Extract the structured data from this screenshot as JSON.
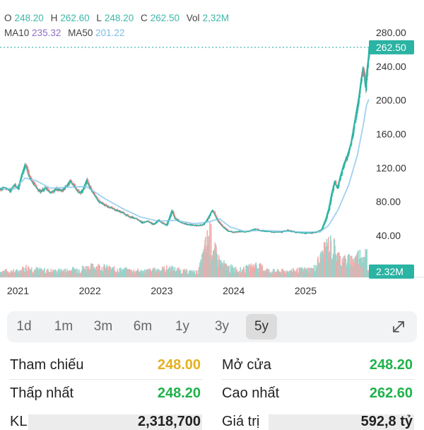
{
  "ohlc": {
    "o_label": "O",
    "o": "248.20",
    "h_label": "H",
    "h": "262.60",
    "l_label": "L",
    "l": "248.20",
    "c_label": "C",
    "c": "262.50",
    "vol_label": "Vol",
    "vol": "2,32M"
  },
  "ma": {
    "ma10_label": "MA10",
    "ma10": "235.32",
    "ma50_label": "MA50",
    "ma50": "201.22"
  },
  "chart_data": {
    "type": "candlestick",
    "y_ticks": [
      "280.00",
      "240.00",
      "200.00",
      "160.00",
      "120.00",
      "80.00",
      "40.00"
    ],
    "y_tick_values": [
      280,
      240,
      200,
      160,
      120,
      80,
      40
    ],
    "ylim": [
      0,
      300
    ],
    "x_ticks": [
      "2021",
      "2022",
      "2023",
      "2024",
      "2025"
    ],
    "x_tick_values": [
      2021.0,
      2022.0,
      2023.0,
      2024.0,
      2025.0
    ],
    "xlim": [
      2020.75,
      2025.88
    ],
    "last_price_label": "262.50",
    "last_price": 262.5,
    "volume_label": "2.32M",
    "price_series": [
      [
        2020.75,
        95
      ],
      [
        2020.82,
        97
      ],
      [
        2020.88,
        93
      ],
      [
        2020.95,
        100
      ],
      [
        2021.0,
        95
      ],
      [
        2021.05,
        112
      ],
      [
        2021.1,
        125
      ],
      [
        2021.15,
        110
      ],
      [
        2021.22,
        100
      ],
      [
        2021.3,
        92
      ],
      [
        2021.38,
        96
      ],
      [
        2021.45,
        90
      ],
      [
        2021.52,
        95
      ],
      [
        2021.6,
        93
      ],
      [
        2021.66,
        97
      ],
      [
        2021.72,
        105
      ],
      [
        2021.78,
        98
      ],
      [
        2021.85,
        90
      ],
      [
        2021.9,
        94
      ],
      [
        2021.95,
        105
      ],
      [
        2022.0,
        96
      ],
      [
        2022.06,
        88
      ],
      [
        2022.12,
        80
      ],
      [
        2022.2,
        76
      ],
      [
        2022.28,
        73
      ],
      [
        2022.36,
        70
      ],
      [
        2022.45,
        67
      ],
      [
        2022.55,
        62
      ],
      [
        2022.65,
        60
      ],
      [
        2022.72,
        55
      ],
      [
        2022.8,
        57
      ],
      [
        2022.88,
        53
      ],
      [
        2022.95,
        58
      ],
      [
        2023.0,
        55
      ],
      [
        2023.06,
        52
      ],
      [
        2023.1,
        60
      ],
      [
        2023.14,
        70
      ],
      [
        2023.18,
        60
      ],
      [
        2023.25,
        56
      ],
      [
        2023.35,
        53
      ],
      [
        2023.45,
        52
      ],
      [
        2023.55,
        52
      ],
      [
        2023.6,
        55
      ],
      [
        2023.65,
        62
      ],
      [
        2023.7,
        70
      ],
      [
        2023.74,
        64
      ],
      [
        2023.78,
        57
      ],
      [
        2023.85,
        50
      ],
      [
        2023.92,
        45
      ],
      [
        2024.0,
        44
      ],
      [
        2024.08,
        45
      ],
      [
        2024.16,
        44
      ],
      [
        2024.24,
        46
      ],
      [
        2024.3,
        48
      ],
      [
        2024.36,
        46
      ],
      [
        2024.45,
        45
      ],
      [
        2024.55,
        44
      ],
      [
        2024.65,
        44
      ],
      [
        2024.75,
        46
      ],
      [
        2024.85,
        44
      ],
      [
        2024.95,
        43
      ],
      [
        2025.05,
        43
      ],
      [
        2025.15,
        44
      ],
      [
        2025.22,
        47
      ],
      [
        2025.28,
        60
      ],
      [
        2025.32,
        72
      ],
      [
        2025.36,
        90
      ],
      [
        2025.4,
        104
      ],
      [
        2025.44,
        96
      ],
      [
        2025.48,
        110
      ],
      [
        2025.53,
        125
      ],
      [
        2025.58,
        135
      ],
      [
        2025.63,
        150
      ],
      [
        2025.67,
        170
      ],
      [
        2025.71,
        190
      ],
      [
        2025.74,
        205
      ],
      [
        2025.77,
        225
      ],
      [
        2025.8,
        240
      ],
      [
        2025.83,
        215
      ],
      [
        2025.85,
        235
      ],
      [
        2025.87,
        250
      ],
      [
        2025.88,
        262.5
      ]
    ],
    "ma50_series": [
      [
        2020.75,
        96
      ],
      [
        2020.95,
        95
      ],
      [
        2021.1,
        108
      ],
      [
        2021.25,
        105
      ],
      [
        2021.45,
        96
      ],
      [
        2021.7,
        97
      ],
      [
        2021.95,
        98
      ],
      [
        2022.2,
        84
      ],
      [
        2022.45,
        72
      ],
      [
        2022.7,
        62
      ],
      [
        2022.95,
        57
      ],
      [
        2023.2,
        58
      ],
      [
        2023.45,
        54
      ],
      [
        2023.65,
        56
      ],
      [
        2023.8,
        60
      ],
      [
        2023.95,
        50
      ],
      [
        2024.15,
        45
      ],
      [
        2024.4,
        46
      ],
      [
        2024.7,
        45
      ],
      [
        2025.0,
        44
      ],
      [
        2025.2,
        44
      ],
      [
        2025.32,
        52
      ],
      [
        2025.45,
        70
      ],
      [
        2025.6,
        100
      ],
      [
        2025.72,
        135
      ],
      [
        2025.8,
        170
      ],
      [
        2025.85,
        195
      ],
      [
        2025.88,
        201
      ]
    ],
    "volume_series": [
      [
        2021.0,
        0.6
      ],
      [
        2021.1,
        1.0
      ],
      [
        2021.3,
        0.7
      ],
      [
        2021.5,
        0.6
      ],
      [
        2021.7,
        0.7
      ],
      [
        2021.9,
        0.9
      ],
      [
        2022.1,
        1.1
      ],
      [
        2022.3,
        0.8
      ],
      [
        2022.5,
        0.7
      ],
      [
        2022.7,
        0.6
      ],
      [
        2022.9,
        0.7
      ],
      [
        2023.1,
        0.9
      ],
      [
        2023.3,
        0.6
      ],
      [
        2023.5,
        0.5
      ],
      [
        2023.62,
        3.5
      ],
      [
        2023.66,
        4.5
      ],
      [
        2023.7,
        3.0
      ],
      [
        2023.8,
        1.5
      ],
      [
        2023.9,
        1.0
      ],
      [
        2024.1,
        0.7
      ],
      [
        2024.3,
        1.2
      ],
      [
        2024.5,
        0.6
      ],
      [
        2024.7,
        0.6
      ],
      [
        2024.9,
        0.7
      ],
      [
        2025.1,
        0.8
      ],
      [
        2025.25,
        2.5
      ],
      [
        2025.3,
        3.2
      ],
      [
        2025.38,
        3.0
      ],
      [
        2025.45,
        2.0
      ],
      [
        2025.55,
        1.6
      ],
      [
        2025.65,
        1.8
      ],
      [
        2025.75,
        2.2
      ],
      [
        2025.85,
        2.32
      ]
    ]
  },
  "timeframes": [
    "1d",
    "1m",
    "3m",
    "6m",
    "1y",
    "3y",
    "5y"
  ],
  "active_timeframe": "5y",
  "stats": {
    "ref_label": "Tham chiếu",
    "ref_value": "248.00",
    "open_label": "Mở cửa",
    "open_value": "248.20",
    "low_label": "Thấp nhất",
    "low_value": "248.20",
    "high_label": "Cao nhất",
    "high_value": "262.60",
    "kl_label": "KL",
    "kl_value": "2,318,700",
    "gt_label": "Giá trị",
    "gt_value": "592,8 tỷ"
  },
  "colors": {
    "up": "#2bb3a3",
    "down": "#f07a7a",
    "ma10": "#8e6fc7",
    "ma50": "#7bbde6",
    "yellow": "#e3b021",
    "green": "#1fb24a",
    "teal_text": "#3fb6a8"
  }
}
